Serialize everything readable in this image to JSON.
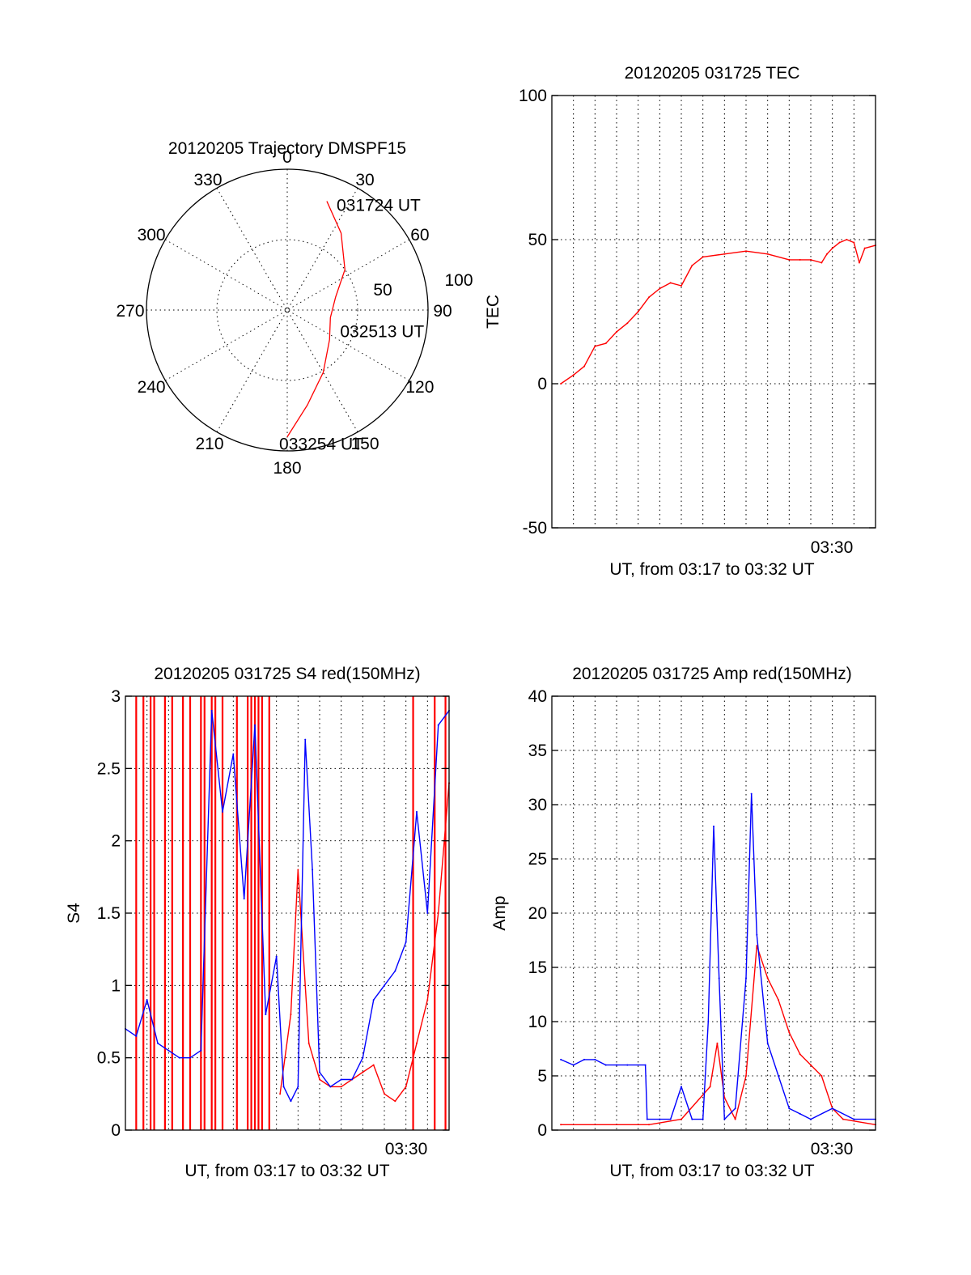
{
  "chart_data": [
    {
      "id": "trajectory",
      "type": "polar",
      "title": "20120205 Trajectory DMSPF15",
      "angle_labels": [
        "0",
        "30",
        "60",
        "90",
        "120",
        "150",
        "180",
        "210",
        "240",
        "270",
        "300",
        "330"
      ],
      "radius_labels": [
        "50",
        "100"
      ],
      "rlim": [
        0,
        100
      ],
      "series_color": "#ff0000",
      "track": [
        {
          "az": 20,
          "el": 16
        },
        {
          "az": 35,
          "el": 30
        },
        {
          "az": 55,
          "el": 45
        },
        {
          "az": 75,
          "el": 58
        },
        {
          "az": 100,
          "el": 62
        },
        {
          "az": 125,
          "el": 57
        },
        {
          "az": 150,
          "el": 44
        },
        {
          "az": 168,
          "el": 28
        },
        {
          "az": 180,
          "el": 9
        }
      ],
      "annotations": [
        {
          "text": "031724 UT",
          "az": 20,
          "el": 16
        },
        {
          "text": "032513 UT",
          "az": 100,
          "el": 62
        },
        {
          "text": "033254 UT",
          "az": 180,
          "el": 9
        }
      ]
    },
    {
      "id": "tec",
      "type": "line",
      "title": "20120205 031725 TEC",
      "ylabel": "TEC",
      "xlabel": "UT, from 03:17 to 03:32 UT",
      "ylim": [
        -50,
        100
      ],
      "yticks": [
        "-50",
        "0",
        "50",
        "100"
      ],
      "xlim": [
        "03:17:00",
        "03:32:00"
      ],
      "xtick_label": "03:30",
      "grid": true,
      "series": [
        {
          "color": "#ff0000",
          "points": [
            [
              "03:17:25",
              0
            ],
            [
              "03:18:00",
              3
            ],
            [
              "03:18:30",
              6
            ],
            [
              "03:19:00",
              13
            ],
            [
              "03:19:30",
              14
            ],
            [
              "03:20:00",
              18
            ],
            [
              "03:20:30",
              21
            ],
            [
              "03:21:00",
              25
            ],
            [
              "03:21:30",
              30
            ],
            [
              "03:22:00",
              33
            ],
            [
              "03:22:30",
              35
            ],
            [
              "03:23:00",
              34
            ],
            [
              "03:23:30",
              41
            ],
            [
              "03:24:00",
              44
            ],
            [
              "03:25:00",
              45
            ],
            [
              "03:26:00",
              46
            ],
            [
              "03:27:00",
              45
            ],
            [
              "03:28:00",
              43
            ],
            [
              "03:28:30",
              43
            ],
            [
              "03:29:00",
              43
            ],
            [
              "03:29:30",
              42
            ],
            [
              "03:29:45",
              45
            ],
            [
              "03:30:00",
              47
            ],
            [
              "03:30:20",
              49
            ],
            [
              "03:30:40",
              50
            ],
            [
              "03:31:00",
              49
            ],
            [
              "03:31:15",
              42
            ],
            [
              "03:31:30",
              47
            ],
            [
              "03:32:00",
              48
            ]
          ]
        }
      ]
    },
    {
      "id": "s4",
      "type": "line",
      "title": "20120205 031725 S4 red(150MHz)",
      "ylabel": "S4",
      "xlabel": "UT, from 03:17 to 03:32 UT",
      "ylim": [
        0,
        3
      ],
      "yticks": [
        "0",
        "0.5",
        "1",
        "1.5",
        "2",
        "2.5",
        "3"
      ],
      "xlim": [
        "03:17:00",
        "03:32:00"
      ],
      "xtick_label": "03:30",
      "grid": true,
      "series": [
        {
          "color": "#ff0000",
          "points": [
            [
              "03:24:10",
              0.25
            ],
            [
              "03:24:40",
              0.8
            ],
            [
              "03:25:00",
              1.8
            ],
            [
              "03:25:30",
              0.6
            ],
            [
              "03:26:00",
              0.35
            ],
            [
              "03:26:30",
              0.3
            ],
            [
              "03:27:00",
              0.3
            ],
            [
              "03:27:30",
              0.35
            ],
            [
              "03:28:00",
              0.4
            ],
            [
              "03:28:30",
              0.45
            ],
            [
              "03:29:00",
              0.25
            ],
            [
              "03:29:30",
              0.2
            ],
            [
              "03:30:00",
              0.3
            ],
            [
              "03:30:30",
              0.6
            ],
            [
              "03:31:00",
              0.9
            ],
            [
              "03:31:30",
              1.5
            ],
            [
              "03:32:00",
              2.4
            ]
          ]
        },
        {
          "color": "#0000ff",
          "points": [
            [
              "03:17:00",
              0.7
            ],
            [
              "03:17:30",
              0.65
            ],
            [
              "03:18:00",
              0.9
            ],
            [
              "03:18:30",
              0.6
            ],
            [
              "03:19:00",
              0.55
            ],
            [
              "03:19:30",
              0.5
            ],
            [
              "03:20:00",
              0.5
            ],
            [
              "03:20:30",
              0.55
            ],
            [
              "03:21:00",
              2.9
            ],
            [
              "03:21:30",
              2.2
            ],
            [
              "03:22:00",
              2.6
            ],
            [
              "03:22:30",
              1.6
            ],
            [
              "03:23:00",
              2.8
            ],
            [
              "03:23:30",
              0.8
            ],
            [
              "03:24:00",
              1.2
            ],
            [
              "03:24:20",
              0.3
            ],
            [
              "03:24:40",
              0.2
            ],
            [
              "03:25:00",
              0.3
            ],
            [
              "03:25:20",
              2.7
            ],
            [
              "03:25:40",
              1.8
            ],
            [
              "03:26:00",
              0.4
            ],
            [
              "03:26:30",
              0.3
            ],
            [
              "03:27:00",
              0.35
            ],
            [
              "03:27:30",
              0.35
            ],
            [
              "03:28:00",
              0.5
            ],
            [
              "03:28:30",
              0.9
            ],
            [
              "03:29:00",
              1.0
            ],
            [
              "03:29:30",
              1.1
            ],
            [
              "03:30:00",
              1.3
            ],
            [
              "03:30:30",
              2.2
            ],
            [
              "03:31:00",
              1.5
            ],
            [
              "03:31:30",
              2.8
            ],
            [
              "03:32:00",
              2.9
            ]
          ]
        }
      ],
      "red_spike_times": [
        "03:17:30",
        "03:17:50",
        "03:18:10",
        "03:18:20",
        "03:18:50",
        "03:19:10",
        "03:19:40",
        "03:20:00",
        "03:20:30",
        "03:20:40",
        "03:21:00",
        "03:21:10",
        "03:21:30",
        "03:22:10",
        "03:22:40",
        "03:22:50",
        "03:23:00",
        "03:23:10",
        "03:23:20",
        "03:23:40",
        "03:30:20",
        "03:31:20",
        "03:31:50"
      ]
    },
    {
      "id": "amp",
      "type": "line",
      "title": "20120205 031725 Amp red(150MHz)",
      "ylabel": "Amp",
      "xlabel": "UT, from 03:17 to 03:32 UT",
      "ylim": [
        0,
        40
      ],
      "yticks": [
        "0",
        "5",
        "10",
        "15",
        "20",
        "25",
        "30",
        "35",
        "40"
      ],
      "xlim": [
        "03:17:00",
        "03:32:00"
      ],
      "xtick_label": "03:30",
      "grid": true,
      "series": [
        {
          "color": "#ff0000",
          "points": [
            [
              "03:17:25",
              0.5
            ],
            [
              "03:21:30",
              0.5
            ],
            [
              "03:23:00",
              1
            ],
            [
              "03:24:20",
              4
            ],
            [
              "03:24:40",
              8
            ],
            [
              "03:25:00",
              3
            ],
            [
              "03:25:30",
              1
            ],
            [
              "03:26:00",
              5
            ],
            [
              "03:26:30",
              17
            ],
            [
              "03:27:00",
              14
            ],
            [
              "03:27:30",
              12
            ],
            [
              "03:28:00",
              9
            ],
            [
              "03:28:30",
              7
            ],
            [
              "03:29:00",
              6
            ],
            [
              "03:29:30",
              5
            ],
            [
              "03:30:00",
              2
            ],
            [
              "03:30:30",
              1
            ],
            [
              "03:32:00",
              0.5
            ]
          ]
        },
        {
          "color": "#0000ff",
          "points": [
            [
              "03:17:25",
              6.5
            ],
            [
              "03:18:00",
              6
            ],
            [
              "03:18:30",
              6.5
            ],
            [
              "03:19:00",
              6.5
            ],
            [
              "03:19:30",
              6
            ],
            [
              "03:20:00",
              6
            ],
            [
              "03:20:30",
              6
            ],
            [
              "03:21:20",
              6
            ],
            [
              "03:21:25",
              1
            ],
            [
              "03:22:00",
              1
            ],
            [
              "03:22:30",
              1
            ],
            [
              "03:23:00",
              4
            ],
            [
              "03:23:30",
              1
            ],
            [
              "03:24:00",
              1
            ],
            [
              "03:24:15",
              10
            ],
            [
              "03:24:30",
              28
            ],
            [
              "03:24:45",
              14
            ],
            [
              "03:25:00",
              1
            ],
            [
              "03:25:30",
              2
            ],
            [
              "03:26:00",
              14
            ],
            [
              "03:26:15",
              31
            ],
            [
              "03:26:30",
              18
            ],
            [
              "03:27:00",
              8
            ],
            [
              "03:27:30",
              5
            ],
            [
              "03:28:00",
              2
            ],
            [
              "03:28:30",
              1.5
            ],
            [
              "03:29:00",
              1
            ],
            [
              "03:30:00",
              2
            ],
            [
              "03:31:00",
              1
            ],
            [
              "03:32:00",
              1
            ]
          ]
        }
      ]
    }
  ]
}
